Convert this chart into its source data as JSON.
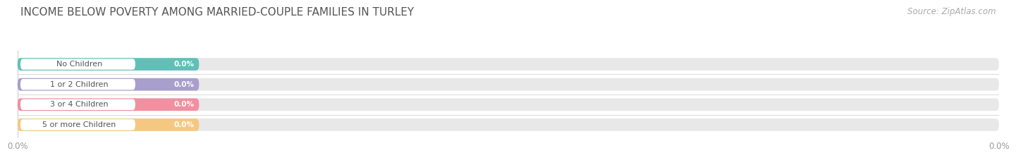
{
  "title": "INCOME BELOW POVERTY AMONG MARRIED-COUPLE FAMILIES IN TURLEY",
  "source": "Source: ZipAtlas.com",
  "categories": [
    "No Children",
    "1 or 2 Children",
    "3 or 4 Children",
    "5 or more Children"
  ],
  "values": [
    0.0,
    0.0,
    0.0,
    0.0
  ],
  "bar_colors": [
    "#62bfb8",
    "#a89fcc",
    "#f090a0",
    "#f5c882"
  ],
  "bar_bg_color": "#e8e8e8",
  "value_label": "0.0%",
  "xlim": [
    0,
    100
  ],
  "background_color": "#ffffff",
  "title_fontsize": 11,
  "source_fontsize": 8.5,
  "xtick_labels": [
    "0.0%",
    "0.0%"
  ],
  "label_text_color": "#666666",
  "value_text_color": "white",
  "grid_color": "#cccccc",
  "pill_white_color": "#ffffff",
  "pill_label_color": "#555555"
}
